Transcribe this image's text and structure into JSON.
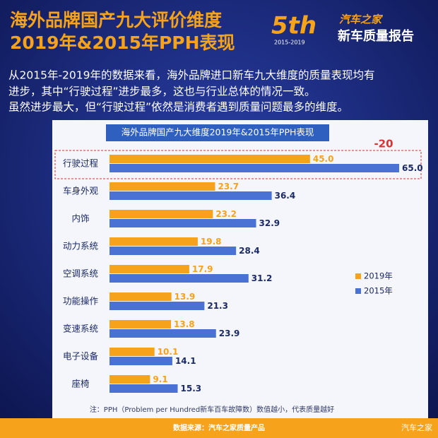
{
  "header": {
    "title_lines": [
      "海外品牌国产九大评价维度",
      "2019年&2015年PPH表现"
    ],
    "logo_big": "5th",
    "logo_years": "2015-2019",
    "brand": "汽车之家",
    "report": "新车质量报告"
  },
  "paragraph": [
    "从2015年-2019年的数据来看，海外品牌进口新车九大维度的质量表现均有",
    "进步，其中“行驶过程”进步最多，这也与行业总体的情况一致。",
    "虽然进步最大，但“行驶过程”依然是消费者遇到质量问题最多的维度。"
  ],
  "chart_data": {
    "type": "hbar",
    "title": "海外品牌国产九大维度2019年&2015年PPH表现",
    "categories": [
      "行驶过程",
      "车身外观",
      "内饰",
      "动力系统",
      "空调系统",
      "功能操作",
      "变速系统",
      "电子设备",
      "座椅"
    ],
    "series": [
      {
        "name": "2019年",
        "color": "#f7a21b",
        "values": [
          45,
          23.7,
          23.2,
          19.8,
          17.9,
          13.9,
          13.8,
          10.1,
          9.1
        ],
        "value_labels": [
          "45.0",
          "23.7",
          "23.2",
          "19.8",
          "17.9",
          "13.9",
          "13.8",
          "10.1",
          "9.1"
        ]
      },
      {
        "name": "2015年",
        "color": "#4a72d4",
        "values": [
          65,
          36.4,
          32.9,
          28.4,
          31.2,
          21.3,
          23.9,
          14.1,
          15.3
        ],
        "value_labels": [
          "65.0",
          "36.4",
          "32.9",
          "28.4",
          "31.2",
          "21.3",
          "23.9",
          "14.1",
          "15.3"
        ]
      }
    ],
    "annotation": "-20",
    "legend": "right"
  },
  "footnote": "注：PPH（Problem per Hundred新车百车故障数）数值越小，代表质量越好",
  "footer": {
    "source": "数据来源：汽车之家质量产品",
    "watermark": "汽车之家"
  }
}
